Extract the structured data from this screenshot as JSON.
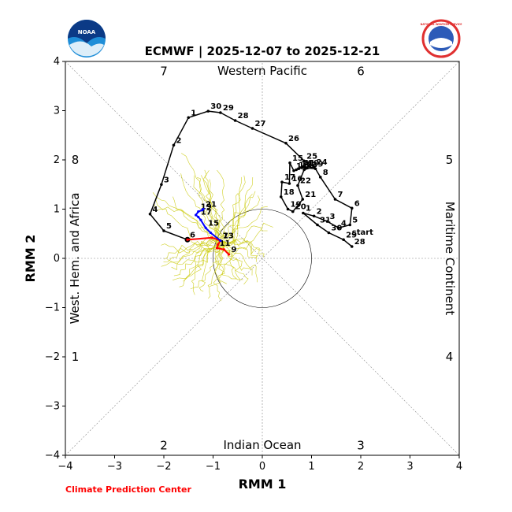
{
  "title": "ECMWF | 2025-12-07 to 2025-12-21",
  "credit": "Climate Prediction Center",
  "logos": {
    "left": "NOAA",
    "right": "NATIONAL WEATHER SERVICE"
  },
  "chart_data": {
    "type": "scatter",
    "xlabel": "RMM 1",
    "ylabel": "RMM 2",
    "xlim": [
      -4,
      4
    ],
    "ylim": [
      -4,
      4
    ],
    "ticks": [
      "-4",
      "-3",
      "-2",
      "-1",
      "0",
      "1",
      "2",
      "3",
      "4"
    ],
    "grid": false,
    "unit_circle_radius": 1,
    "regions": {
      "top": "Western Pacific",
      "bottom": "Indian Ocean",
      "left": "West. Hem. and Africa",
      "right": "Maritime Continent"
    },
    "phases": [
      {
        "label": "1",
        "x": -3.8,
        "y": -2.0
      },
      {
        "label": "2",
        "x": -2.0,
        "y": -3.8
      },
      {
        "label": "3",
        "x": 2.0,
        "y": -3.8
      },
      {
        "label": "4",
        "x": 3.8,
        "y": -2.0
      },
      {
        "label": "5",
        "x": 3.8,
        "y": 2.0
      },
      {
        "label": "6",
        "x": 2.0,
        "y": 3.8
      },
      {
        "label": "7",
        "x": -2.0,
        "y": 3.8
      },
      {
        "label": "8",
        "x": -3.8,
        "y": 2.0
      }
    ],
    "observed": {
      "color": "#000000",
      "points": [
        {
          "x": 1.82,
          "y": 0.24,
          "label": "28"
        },
        {
          "x": 1.65,
          "y": 0.38,
          "label": "29"
        },
        {
          "x": 1.35,
          "y": 0.52,
          "label": "30"
        },
        {
          "x": 1.12,
          "y": 0.68,
          "label": "31"
        },
        {
          "x": 0.83,
          "y": 0.92,
          "label": "1"
        },
        {
          "x": 1.05,
          "y": 0.86,
          "label": "2"
        },
        {
          "x": 1.32,
          "y": 0.75,
          "label": "3"
        },
        {
          "x": 1.55,
          "y": 0.62,
          "label": "4"
        },
        {
          "x": 1.78,
          "y": 0.68,
          "label": "5"
        },
        {
          "x": 1.82,
          "y": 1.02,
          "label": "6"
        },
        {
          "x": 1.48,
          "y": 1.2,
          "label": "7"
        },
        {
          "x": 1.18,
          "y": 1.65,
          "label": "8"
        },
        {
          "x": 1.08,
          "y": 1.82,
          "label": "9"
        },
        {
          "x": 0.88,
          "y": 1.84,
          "label": "10"
        },
        {
          "x": 0.8,
          "y": 1.84,
          "label": "11"
        },
        {
          "x": 0.74,
          "y": 1.82,
          "label": "12"
        },
        {
          "x": 0.69,
          "y": 1.8,
          "label": "13"
        },
        {
          "x": 0.64,
          "y": 1.78,
          "label": "14"
        },
        {
          "x": 0.56,
          "y": 1.94,
          "label": "15"
        },
        {
          "x": 0.55,
          "y": 1.52,
          "label": "16"
        },
        {
          "x": 0.4,
          "y": 1.55,
          "label": "17"
        },
        {
          "x": 0.38,
          "y": 1.25,
          "label": "18"
        },
        {
          "x": 0.52,
          "y": 1.0,
          "label": "19"
        },
        {
          "x": 0.62,
          "y": 0.95,
          "label": "20"
        },
        {
          "x": 0.82,
          "y": 1.2,
          "label": "21"
        },
        {
          "x": 0.72,
          "y": 1.48,
          "label": "22"
        },
        {
          "x": 0.85,
          "y": 1.8,
          "label": "23"
        },
        {
          "x": 1.05,
          "y": 1.86,
          "label": "24"
        },
        {
          "x": 0.85,
          "y": 1.98,
          "label": "25"
        },
        {
          "x": 0.48,
          "y": 2.34,
          "label": "26"
        },
        {
          "x": -0.2,
          "y": 2.64,
          "label": "27"
        },
        {
          "x": -0.55,
          "y": 2.8,
          "label": "28"
        },
        {
          "x": -0.85,
          "y": 2.96,
          "label": "29"
        },
        {
          "x": -1.1,
          "y": 2.99,
          "label": "30"
        },
        {
          "x": -1.5,
          "y": 2.86,
          "label": "1"
        },
        {
          "x": -1.8,
          "y": 2.3,
          "label": "2"
        },
        {
          "x": -2.05,
          "y": 1.5,
          "label": "3"
        },
        {
          "x": -2.28,
          "y": 0.9,
          "label": "4"
        },
        {
          "x": -2.0,
          "y": 0.56,
          "label": "5"
        },
        {
          "x": -1.52,
          "y": 0.38,
          "label": "6"
        }
      ],
      "annotations": [
        {
          "text": "start",
          "x": 1.82,
          "y": 0.48
        }
      ]
    },
    "forecast_week1": {
      "color": "#ff0000",
      "points": [
        {
          "x": -1.52,
          "y": 0.38,
          "label": ""
        },
        {
          "x": -1.02,
          "y": 0.42,
          "label": ""
        },
        {
          "x": -0.85,
          "y": 0.36,
          "label": "7"
        },
        {
          "x": -0.9,
          "y": 0.28,
          "label": ""
        },
        {
          "x": -0.92,
          "y": 0.21,
          "label": "11"
        },
        {
          "x": -0.78,
          "y": 0.18,
          "label": ""
        },
        {
          "x": -0.68,
          "y": 0.08,
          "label": "9"
        }
      ]
    },
    "forecast_week2": {
      "color": "#0000ff",
      "points": [
        {
          "x": -0.85,
          "y": 0.36,
          "label": "13"
        },
        {
          "x": -1.05,
          "y": 0.52,
          "label": ""
        },
        {
          "x": -1.15,
          "y": 0.62,
          "label": "15"
        },
        {
          "x": -1.25,
          "y": 0.78,
          "label": ""
        },
        {
          "x": -1.3,
          "y": 0.84,
          "label": "17"
        },
        {
          "x": -1.35,
          "y": 0.88,
          "label": ""
        },
        {
          "x": -1.3,
          "y": 0.95,
          "label": "19"
        },
        {
          "x": -1.22,
          "y": 0.98,
          "label": ""
        },
        {
          "x": -1.2,
          "y": 1.0,
          "label": "21"
        }
      ]
    },
    "ensemble_color": "#c8c800"
  }
}
